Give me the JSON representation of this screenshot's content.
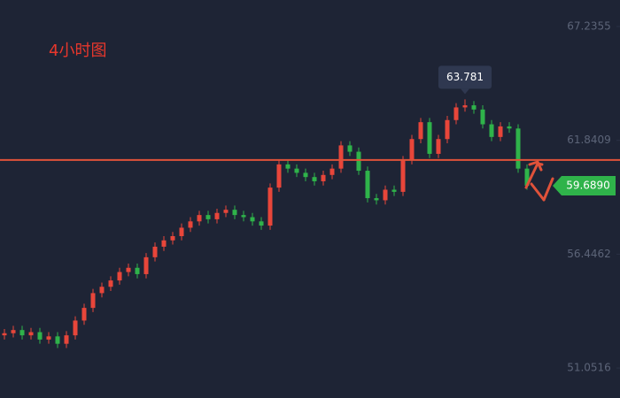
{
  "chart_data": {
    "type": "candlestick",
    "title": "4小时图",
    "up_color": "#e8463a",
    "down_color": "#2fb34a",
    "line_color": "#e0523a",
    "label_color": "#2fb34a",
    "ylim": [
      49.63,
      68.49
    ],
    "yticks": [
      67.2355,
      61.8409,
      56.4462,
      51.0516
    ],
    "open": [
      52.6,
      52.7,
      52.85,
      52.6,
      52.75,
      52.4,
      52.55,
      52.2,
      52.6,
      53.3,
      53.9,
      54.6,
      54.9,
      55.2,
      55.6,
      55.8,
      55.5,
      56.3,
      56.8,
      57.1,
      57.3,
      57.7,
      58.0,
      58.3,
      58.1,
      58.4,
      58.55,
      58.3,
      58.2,
      58.0,
      57.8,
      59.6,
      60.7,
      60.5,
      60.3,
      60.1,
      59.9,
      60.2,
      60.5,
      61.6,
      61.3,
      60.4,
      59.1,
      59.0,
      59.5,
      59.4,
      60.9,
      61.9,
      62.7,
      61.2,
      61.9,
      62.8,
      63.4,
      63.5,
      63.3,
      62.6,
      62.0,
      62.5,
      62.4,
      60.5
    ],
    "high": [
      52.9,
      53.05,
      53.05,
      52.95,
      52.95,
      52.75,
      52.75,
      52.8,
      53.5,
      54.1,
      54.8,
      55.1,
      55.4,
      55.8,
      56.0,
      56.0,
      56.5,
      57.0,
      57.3,
      57.5,
      57.9,
      58.2,
      58.5,
      58.5,
      58.6,
      58.75,
      58.75,
      58.5,
      58.4,
      58.2,
      59.8,
      60.9,
      60.9,
      60.7,
      60.5,
      60.3,
      60.4,
      60.7,
      61.8,
      61.8,
      61.5,
      60.6,
      59.3,
      59.7,
      59.7,
      61.1,
      62.1,
      62.9,
      62.9,
      62.1,
      63.0,
      63.6,
      63.781,
      63.7,
      63.5,
      62.8,
      62.7,
      62.7,
      62.6,
      60.7
    ],
    "low": [
      52.4,
      52.5,
      52.4,
      52.4,
      52.2,
      52.2,
      52.0,
      52.0,
      52.4,
      53.1,
      53.7,
      54.4,
      54.7,
      55.0,
      55.4,
      55.3,
      55.3,
      56.1,
      56.6,
      56.9,
      57.1,
      57.5,
      57.8,
      57.9,
      57.9,
      58.2,
      58.1,
      58.0,
      57.8,
      57.6,
      57.6,
      59.4,
      60.3,
      60.1,
      59.9,
      59.7,
      59.7,
      60.0,
      60.3,
      61.1,
      60.2,
      58.9,
      58.8,
      58.8,
      59.2,
      59.2,
      60.7,
      61.7,
      61.0,
      61.0,
      61.7,
      62.6,
      63.2,
      63.1,
      62.4,
      61.8,
      61.8,
      62.2,
      60.3,
      59.5
    ],
    "close": [
      52.7,
      52.85,
      52.6,
      52.75,
      52.4,
      52.55,
      52.2,
      52.6,
      53.3,
      53.9,
      54.6,
      54.9,
      55.2,
      55.6,
      55.8,
      55.5,
      56.3,
      56.8,
      57.1,
      57.3,
      57.7,
      58.0,
      58.3,
      58.1,
      58.4,
      58.55,
      58.3,
      58.2,
      58.0,
      57.8,
      59.6,
      60.7,
      60.5,
      60.3,
      60.1,
      59.9,
      60.2,
      60.5,
      61.6,
      61.3,
      60.4,
      59.1,
      59.0,
      59.5,
      59.4,
      60.9,
      61.9,
      62.7,
      61.2,
      61.9,
      62.8,
      63.4,
      63.5,
      63.3,
      62.6,
      62.0,
      62.5,
      62.4,
      60.5,
      59.69
    ],
    "peak": 63.781,
    "hline": 60.91,
    "last_price": {
      "value": 59.689,
      "label": "59.6890"
    }
  }
}
